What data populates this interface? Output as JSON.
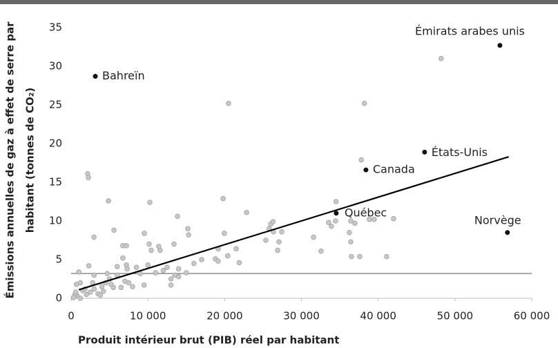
{
  "chart_data": {
    "type": "scatter",
    "x_label": "Produit intérieur brut (PIB) réel par habitant",
    "y_label": [
      "Émissions annuelles de gaz à effet de serre par",
      "habitant (tonnes de CO₂)"
    ],
    "xlim": [
      0,
      60000
    ],
    "ylim": [
      0,
      35
    ],
    "xticks": [
      0,
      {
        "value": 10000,
        "label": "10 000"
      },
      {
        "value": 20000,
        "label": "20 000"
      },
      {
        "value": 30000,
        "label": "30 000"
      },
      {
        "value": 40000,
        "label": "40 000"
      },
      {
        "value": 50000,
        "label": "50 000"
      },
      {
        "value": 60000,
        "label": "60 000"
      }
    ],
    "yticks": [
      0,
      5,
      10,
      15,
      20,
      25,
      30,
      35
    ],
    "series": [
      {
        "color": "#c8c8c8",
        "x": [
          48200,
          38200,
          20500,
          2160,
          2250,
          4860,
          10250,
          19800,
          13850,
          34500,
          37800,
          15200,
          15300,
          5580,
          2970,
          9530,
          10160,
          10430,
          6740,
          7190,
          6740,
          13400,
          11600,
          22850,
          20400,
          21900,
          19960,
          21500,
          19150,
          18800,
          19150,
          25800,
          26000,
          26300,
          25360,
          26350,
          27430,
          27070,
          26900,
          31570,
          32550,
          33540,
          33900,
          34440,
          36420,
          36960,
          36240,
          36420,
          36510,
          37590,
          38850,
          39480,
          42000,
          41100,
          11420,
          1000,
          1500,
          800,
          500,
          300,
          1200,
          2000,
          2500,
          3000,
          3500,
          4000,
          4500,
          5000,
          5500,
          6000,
          6500,
          7000,
          7500,
          8000,
          8500,
          9000,
          10000,
          11000,
          12000,
          13000,
          13500,
          14000,
          15000,
          16000,
          17000,
          2300,
          3000,
          4700,
          5200,
          6000,
          2800,
          1800,
          700,
          1200,
          600,
          3800,
          4200,
          13000,
          9500,
          7200,
          7300,
          12500,
          14000
        ],
        "y": [
          31.0,
          25.2,
          25.2,
          16.1,
          15.6,
          12.6,
          12.4,
          12.9,
          10.6,
          12.5,
          17.9,
          9.0,
          8.2,
          8.8,
          7.9,
          8.4,
          7.0,
          6.2,
          6.8,
          6.8,
          5.2,
          7.0,
          6.2,
          11.1,
          5.5,
          4.6,
          8.4,
          6.4,
          6.4,
          5.1,
          4.8,
          9.0,
          9.6,
          9.9,
          7.5,
          8.6,
          8.6,
          7.3,
          6.2,
          7.9,
          6.1,
          9.8,
          9.3,
          10.0,
          10.0,
          9.7,
          8.5,
          7.3,
          5.4,
          5.4,
          10.2,
          10.2,
          10.3,
          5.4,
          6.7,
          3.4,
          1.0,
          0.3,
          0.5,
          0.1,
          0.0,
          0.5,
          0.8,
          1.2,
          0.6,
          1.5,
          2.0,
          2.5,
          1.4,
          3.0,
          1.4,
          2.2,
          2.0,
          1.5,
          4.0,
          3.2,
          4.3,
          3.3,
          3.6,
          2.5,
          3.0,
          3.8,
          3.3,
          4.5,
          5.0,
          4.2,
          3.0,
          3.2,
          1.8,
          4.1,
          2.0,
          1.2,
          1.8,
          2.0,
          0.8,
          0.4,
          0.9,
          1.7,
          1.7,
          4.3,
          3.8,
          4.0,
          2.8
        ]
      },
      {
        "color": "#111111",
        "x": [
          3150,
          55850,
          46040,
          38400,
          34530,
          56830
        ],
        "y": [
          28.7,
          32.7,
          18.9,
          16.6,
          11.0,
          8.5
        ],
        "labels": [
          "Bahreïn",
          "Émirats arabes unis",
          "États-Unis",
          "Canada",
          "Québec",
          "Norvège"
        ]
      }
    ],
    "trend_line": {
      "color": "#000000",
      "x": [
        1000,
        57000
      ],
      "y": [
        1.1,
        18.3
      ]
    },
    "reference_line": {
      "color": "#777777",
      "y": 3.2
    }
  }
}
